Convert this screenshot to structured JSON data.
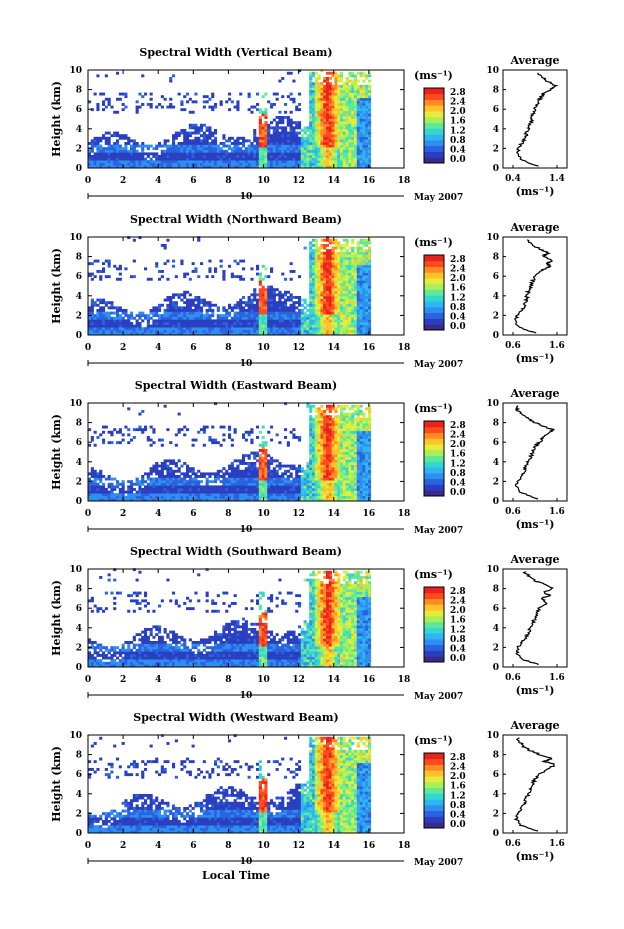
{
  "chart_data": {
    "type": "heatmap",
    "colorbar": {
      "unit": "(ms⁻¹)",
      "ticks": [
        "2.8",
        "2.4",
        "2.0",
        "1.6",
        "1.2",
        "0.8",
        "0.4",
        "0.0"
      ],
      "colors": [
        "#3a2a8a",
        "#2a3fc0",
        "#2b62e0",
        "#2f8ff0",
        "#2fb6f0",
        "#33d6d0",
        "#5fe89a",
        "#a8ef5a",
        "#e6ec3a",
        "#ffc22a",
        "#ff8c22",
        "#ff4a1e",
        "#e8231e"
      ]
    },
    "panels": [
      {
        "title": "Spectral Width (Vertical Beam)",
        "ylabel": "Height (km)",
        "yticks": [
          "0",
          "2",
          "4",
          "6",
          "8",
          "10"
        ],
        "xticks": [
          "0",
          "2",
          "4",
          "6",
          "8",
          "10",
          "12",
          "14",
          "16",
          "18"
        ],
        "date_day": "10",
        "date_rest": "May 2007",
        "profile": {
          "title": "Average",
          "xticks": [
            "0.4",
            "1.4"
          ],
          "xlabel": "(ms⁻¹)",
          "yticks": [
            "0",
            "2",
            "4",
            "6",
            "8",
            "10"
          ],
          "x": [
            0.95,
            0.62,
            0.5,
            0.52,
            0.6,
            0.68,
            0.7,
            0.74,
            0.8,
            0.82,
            0.85,
            0.9,
            0.96,
            1.0,
            1.05,
            1.1,
            1.25,
            1.35,
            1.2,
            1.05,
            0.9
          ],
          "h": [
            0.2,
            0.8,
            1.4,
            2.0,
            2.5,
            3.0,
            3.5,
            4.0,
            4.5,
            5.0,
            5.5,
            6.0,
            6.5,
            7.0,
            7.3,
            7.6,
            8.0,
            8.4,
            8.8,
            9.3,
            9.8
          ]
        }
      },
      {
        "title": "Spectral Width (Northward Beam)",
        "ylabel": "Height (km)",
        "yticks": [
          "0",
          "2",
          "4",
          "6",
          "8",
          "10"
        ],
        "xticks": [
          "0",
          "2",
          "4",
          "6",
          "8",
          "10",
          "12",
          "14",
          "16",
          "18"
        ],
        "date_day": "10",
        "date_rest": "May 2007",
        "profile": {
          "title": "Average",
          "xticks": [
            "0.6",
            "1.6"
          ],
          "xlabel": "(ms⁻¹)",
          "yticks": [
            "0",
            "2",
            "4",
            "6",
            "8",
            "10"
          ],
          "x": [
            1.1,
            0.75,
            0.65,
            0.7,
            0.8,
            0.85,
            0.9,
            0.92,
            0.95,
            1.0,
            1.05,
            1.1,
            1.2,
            1.45,
            1.35,
            1.5,
            1.3,
            1.4,
            1.2,
            1.0,
            0.9
          ],
          "h": [
            0.2,
            0.8,
            1.4,
            2.0,
            2.5,
            3.0,
            3.5,
            4.0,
            4.5,
            5.0,
            5.5,
            6.0,
            6.5,
            7.0,
            7.3,
            7.6,
            8.0,
            8.4,
            8.8,
            9.3,
            9.8
          ]
        }
      },
      {
        "title": "Spectral Width (Eastward Beam)",
        "ylabel": "Height (km)",
        "yticks": [
          "0",
          "2",
          "4",
          "6",
          "8",
          "10"
        ],
        "xticks": [
          "0",
          "2",
          "4",
          "6",
          "8",
          "10",
          "12",
          "14",
          "16",
          "18"
        ],
        "date_day": "10",
        "date_rest": "May 2007",
        "profile": {
          "title": "Average",
          "xticks": [
            "0.6",
            "1.6"
          ],
          "xlabel": "(ms⁻¹)",
          "yticks": [
            "0",
            "2",
            "4",
            "6",
            "8",
            "10"
          ],
          "x": [
            1.2,
            0.8,
            0.68,
            0.7,
            0.78,
            0.85,
            0.9,
            0.95,
            1.0,
            1.05,
            1.1,
            1.2,
            1.3,
            1.45,
            1.5,
            1.3,
            1.1,
            0.95,
            0.8,
            0.7,
            0.72
          ],
          "h": [
            0.2,
            0.8,
            1.4,
            2.0,
            2.5,
            3.0,
            3.5,
            4.0,
            4.5,
            5.0,
            5.5,
            6.0,
            6.5,
            7.0,
            7.3,
            7.6,
            8.0,
            8.4,
            8.8,
            9.3,
            9.8
          ]
        }
      },
      {
        "title": "Spectral Width (Southward Beam)",
        "ylabel": "Height (km)",
        "yticks": [
          "0",
          "2",
          "4",
          "6",
          "8",
          "10"
        ],
        "xticks": [
          "0",
          "2",
          "4",
          "6",
          "8",
          "10",
          "12",
          "14",
          "16",
          "18"
        ],
        "date_day": "10",
        "date_rest": "May 2007",
        "profile": {
          "title": "Average",
          "xticks": [
            "0.6",
            "1.6"
          ],
          "xlabel": "(ms⁻¹)",
          "yticks": [
            "0",
            "2",
            "4",
            "6",
            "8",
            "10"
          ],
          "x": [
            1.2,
            0.8,
            0.68,
            0.72,
            0.8,
            0.9,
            0.95,
            1.0,
            1.05,
            1.1,
            1.15,
            1.2,
            1.35,
            1.25,
            1.45,
            1.3,
            1.5,
            1.35,
            1.1,
            0.95,
            0.85
          ],
          "h": [
            0.2,
            0.8,
            1.4,
            2.0,
            2.5,
            3.0,
            3.5,
            4.0,
            4.5,
            5.0,
            5.5,
            6.0,
            6.5,
            7.0,
            7.3,
            7.6,
            8.0,
            8.4,
            8.8,
            9.3,
            9.8
          ]
        }
      },
      {
        "title": "Spectral Width (Westward Beam)",
        "ylabel": "Height (km)",
        "yticks": [
          "0",
          "2",
          "4",
          "6",
          "8",
          "10"
        ],
        "xticks": [
          "0",
          "2",
          "4",
          "6",
          "8",
          "10",
          "12",
          "14",
          "16",
          "18"
        ],
        "date_day": "10",
        "date_rest": "May 2007",
        "xlabel": "Local Time",
        "profile": {
          "title": "Average",
          "xticks": [
            "0.6",
            "1.6"
          ],
          "xlabel": "(ms⁻¹)",
          "yticks": [
            "0",
            "2",
            "4",
            "6",
            "8",
            "10"
          ],
          "x": [
            1.15,
            0.78,
            0.66,
            0.7,
            0.78,
            0.85,
            0.9,
            0.95,
            1.0,
            1.05,
            1.1,
            1.2,
            1.4,
            1.55,
            1.3,
            1.5,
            1.2,
            1.0,
            0.85,
            0.75,
            0.7
          ],
          "h": [
            0.2,
            0.8,
            1.4,
            2.0,
            2.5,
            3.0,
            3.5,
            4.0,
            4.5,
            5.0,
            5.5,
            6.0,
            6.5,
            7.0,
            7.3,
            7.6,
            8.0,
            8.4,
            8.8,
            9.3,
            9.8
          ]
        }
      }
    ]
  }
}
